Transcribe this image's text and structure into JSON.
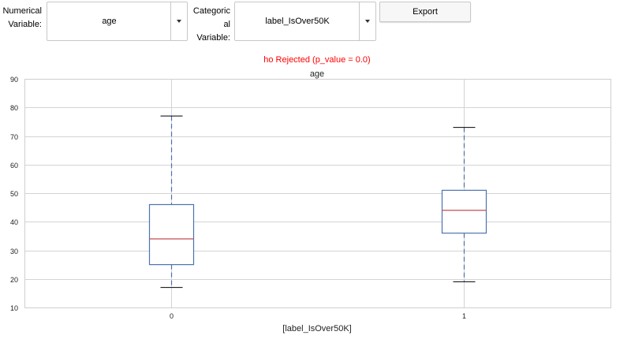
{
  "controls": {
    "numerical_label": "Numerical\nVariable:",
    "numerical_value": "age",
    "categorical_label": "Categoric\nal\nVariable:",
    "categorical_value": "label_IsOver50K",
    "export_label": "Export",
    "dropdown_icon": "chevron-down-icon"
  },
  "chart_data": {
    "type": "box",
    "status_text": "ho Rejected (p_value = 0.0)",
    "status_color": "#ff0000",
    "title": "age",
    "xlabel": "[label_IsOver50K]",
    "ylabel": "",
    "ylim": [
      10,
      90
    ],
    "yticks": [
      10,
      20,
      30,
      40,
      50,
      60,
      70,
      80,
      90
    ],
    "grid": true,
    "box_color": "#4c72b0",
    "median_color": "#c44e52",
    "categories": [
      "0",
      "1"
    ],
    "boxes": [
      {
        "label": "0",
        "whisker_low": 17,
        "q1": 25,
        "median": 34,
        "q3": 46,
        "whisker_high": 77
      },
      {
        "label": "1",
        "whisker_low": 19,
        "q1": 36,
        "median": 44,
        "q3": 51,
        "whisker_high": 73
      }
    ]
  }
}
